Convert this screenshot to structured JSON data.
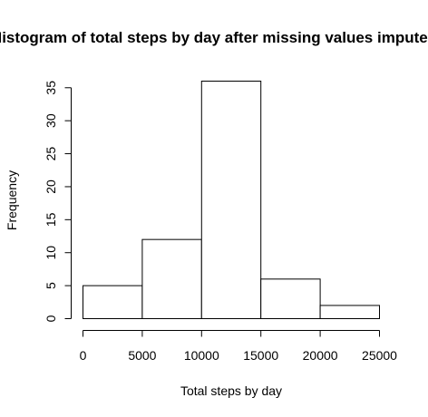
{
  "chart_data": {
    "type": "bar",
    "title": "Histogram of total steps by day after missing values imputed",
    "xlabel": "Total steps by day",
    "ylabel": "Frequency",
    "bins": [
      {
        "from": 0,
        "to": 5000,
        "count": 5
      },
      {
        "from": 5000,
        "to": 10000,
        "count": 12
      },
      {
        "from": 10000,
        "to": 15000,
        "count": 36
      },
      {
        "from": 15000,
        "to": 20000,
        "count": 6
      },
      {
        "from": 20000,
        "to": 25000,
        "count": 2
      }
    ],
    "xlim": [
      0,
      25000
    ],
    "ylim": [
      0,
      36
    ],
    "x_ticks": [
      "0",
      "5000",
      "10000",
      "15000",
      "20000",
      "25000"
    ],
    "y_ticks": [
      "0",
      "5",
      "10",
      "15",
      "20",
      "25",
      "30",
      "35"
    ],
    "grid": false,
    "legend": "none",
    "bar_fill": "#ffffff",
    "bar_stroke": "#000000"
  }
}
